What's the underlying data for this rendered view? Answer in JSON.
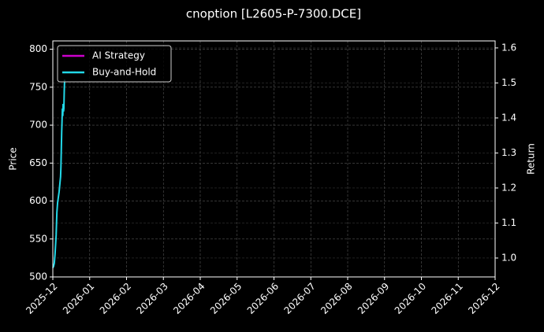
{
  "chart_data": {
    "type": "line",
    "title": "cnoption [L2605-P-7300.DCE]",
    "y_label": "Price",
    "y2_label": "Return",
    "xlim": [
      0,
      12
    ],
    "xticks": [
      {
        "value": 0,
        "label": "2025-12"
      },
      {
        "value": 1,
        "label": "2026-01"
      },
      {
        "value": 2,
        "label": "2026-02"
      },
      {
        "value": 3,
        "label": "2026-03"
      },
      {
        "value": 4,
        "label": "2026-04"
      },
      {
        "value": 5,
        "label": "2026-05"
      },
      {
        "value": 6,
        "label": "2026-06"
      },
      {
        "value": 7,
        "label": "2026-07"
      },
      {
        "value": 8,
        "label": "2026-08"
      },
      {
        "value": 9,
        "label": "2026-09"
      },
      {
        "value": 10,
        "label": "2026-10"
      },
      {
        "value": 11,
        "label": "2026-11"
      },
      {
        "value": 12,
        "label": "2026-12"
      }
    ],
    "ylim": [
      500,
      811
    ],
    "yticks": [
      500,
      550,
      600,
      650,
      700,
      750,
      800
    ],
    "y2lim": [
      0.946,
      1.62
    ],
    "y2ticks": [
      {
        "value": 1.0,
        "label": "1.0"
      },
      1.1,
      1.2,
      1.3,
      1.4,
      1.5,
      1.6
    ],
    "grid": true,
    "legend": "upper left",
    "series": [
      {
        "name": "AI Strategy",
        "color": "#cc00cc",
        "x": [],
        "values": []
      },
      {
        "name": "Buy-and-Hold",
        "color": "#22d8e8",
        "x": [
          0,
          0.02,
          0.04,
          0.06,
          0.09,
          0.11,
          0.13,
          0.17,
          0.21,
          0.22,
          0.24,
          0.26,
          0.27,
          0.28,
          0.29,
          0.3,
          0.31,
          0.32
        ],
        "values": [
          512,
          514,
          518,
          530,
          555,
          585,
          598,
          612,
          632,
          645,
          690,
          722,
          712,
          728,
          718,
          722,
          745,
          760
        ]
      }
    ]
  }
}
